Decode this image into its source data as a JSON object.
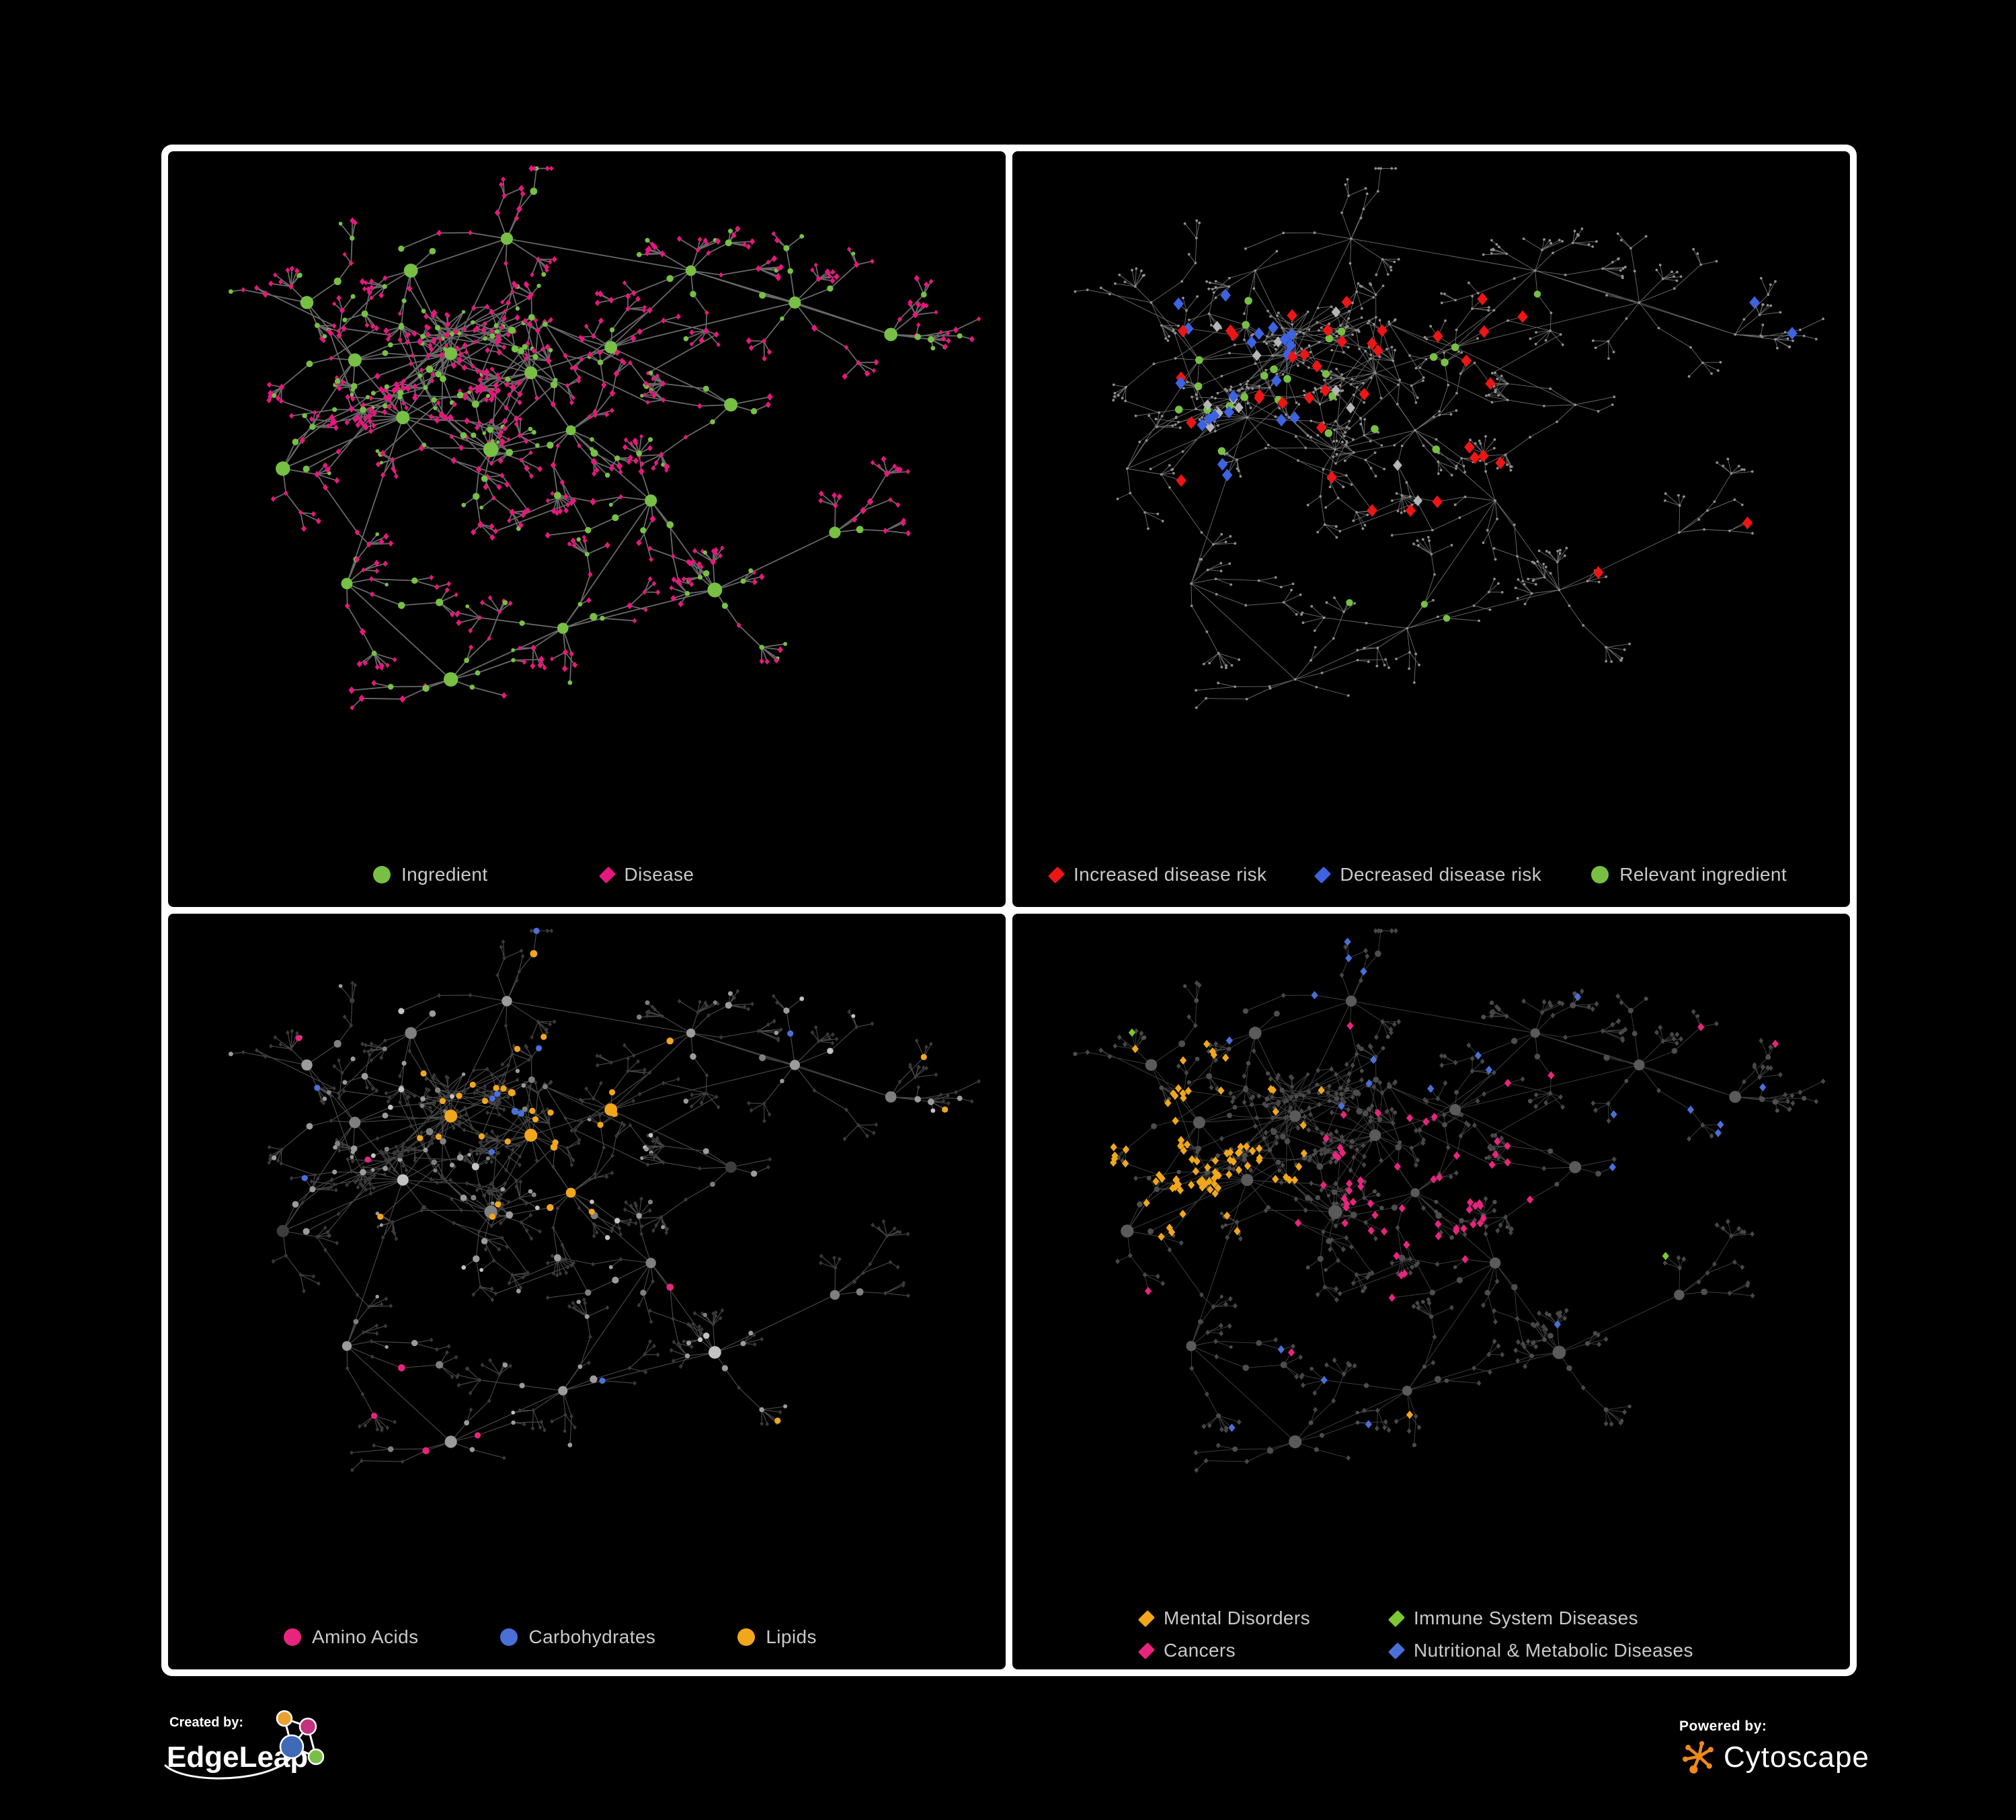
{
  "panels": [
    {
      "id": "ingredient-disease",
      "legend": [
        {
          "label": "Ingredient",
          "shape": "circle",
          "color": "#77c043"
        },
        {
          "label": "Disease",
          "shape": "diamond",
          "color": "#e6187d"
        }
      ],
      "style": {
        "edge_color": "#7b7b7b",
        "edge_width": 1.8,
        "edge_opacity": 0.85
      }
    },
    {
      "id": "disease-risk",
      "legend": [
        {
          "label": "Increased disease risk",
          "shape": "diamond",
          "color": "#ed1515"
        },
        {
          "label": "Decreased disease risk",
          "shape": "diamond",
          "color": "#3d63e3"
        },
        {
          "label": "Relevant ingredient",
          "shape": "circle",
          "color": "#77c043"
        }
      ],
      "style": {
        "edge_color": "#9c9c9c",
        "edge_width": 0.9,
        "edge_opacity": 0.7,
        "base_node": "#8f8f8f",
        "neutral_highlight": "#b5b5b5"
      }
    },
    {
      "id": "nutrient-classes",
      "legend": [
        {
          "label": "Amino Acids",
          "shape": "circle",
          "color": "#e8247e"
        },
        {
          "label": "Carbohydrates",
          "shape": "circle",
          "color": "#4a6fd6"
        },
        {
          "label": "Lipids",
          "shape": "circle",
          "color": "#f2a71b"
        }
      ],
      "style": {
        "edge_color": "#969696",
        "edge_width": 1.1,
        "edge_opacity": 0.5,
        "base_ingredient": "#9b9b9b",
        "base_disease": "#3a3a3a"
      }
    },
    {
      "id": "disease-categories",
      "legend": [
        {
          "label": "Mental Disorders",
          "shape": "diamond",
          "color": "#f2a71b"
        },
        {
          "label": "Immune System Diseases",
          "shape": "diamond",
          "color": "#7bc832"
        },
        {
          "label": "Cancers",
          "shape": "diamond",
          "color": "#e8247e"
        },
        {
          "label": "Nutritional & Metabolic Diseases",
          "shape": "diamond",
          "color": "#4a6fd6"
        }
      ],
      "style": {
        "edge_color": "#9c9c9c",
        "edge_width": 0.9,
        "edge_opacity": 0.42,
        "base_ingredient": "#4d4d4d",
        "base_hub": "#5a5a5a",
        "base_disease": "#474747"
      }
    }
  ],
  "footer": {
    "created_by_label": "Created by:",
    "created_by_name": "EdgeLeap",
    "powered_by_label": "Powered by:",
    "powered_by_name": "Cytoscape",
    "edgeleap_colors": [
      "#eaa12e",
      "#c4317c",
      "#3f6ab8",
      "#76c043"
    ],
    "cytoscape_color": "#ef8a1d",
    "logo_line_color": "#ffffff"
  },
  "network": {
    "seed": 11,
    "extra_links": 70
  }
}
